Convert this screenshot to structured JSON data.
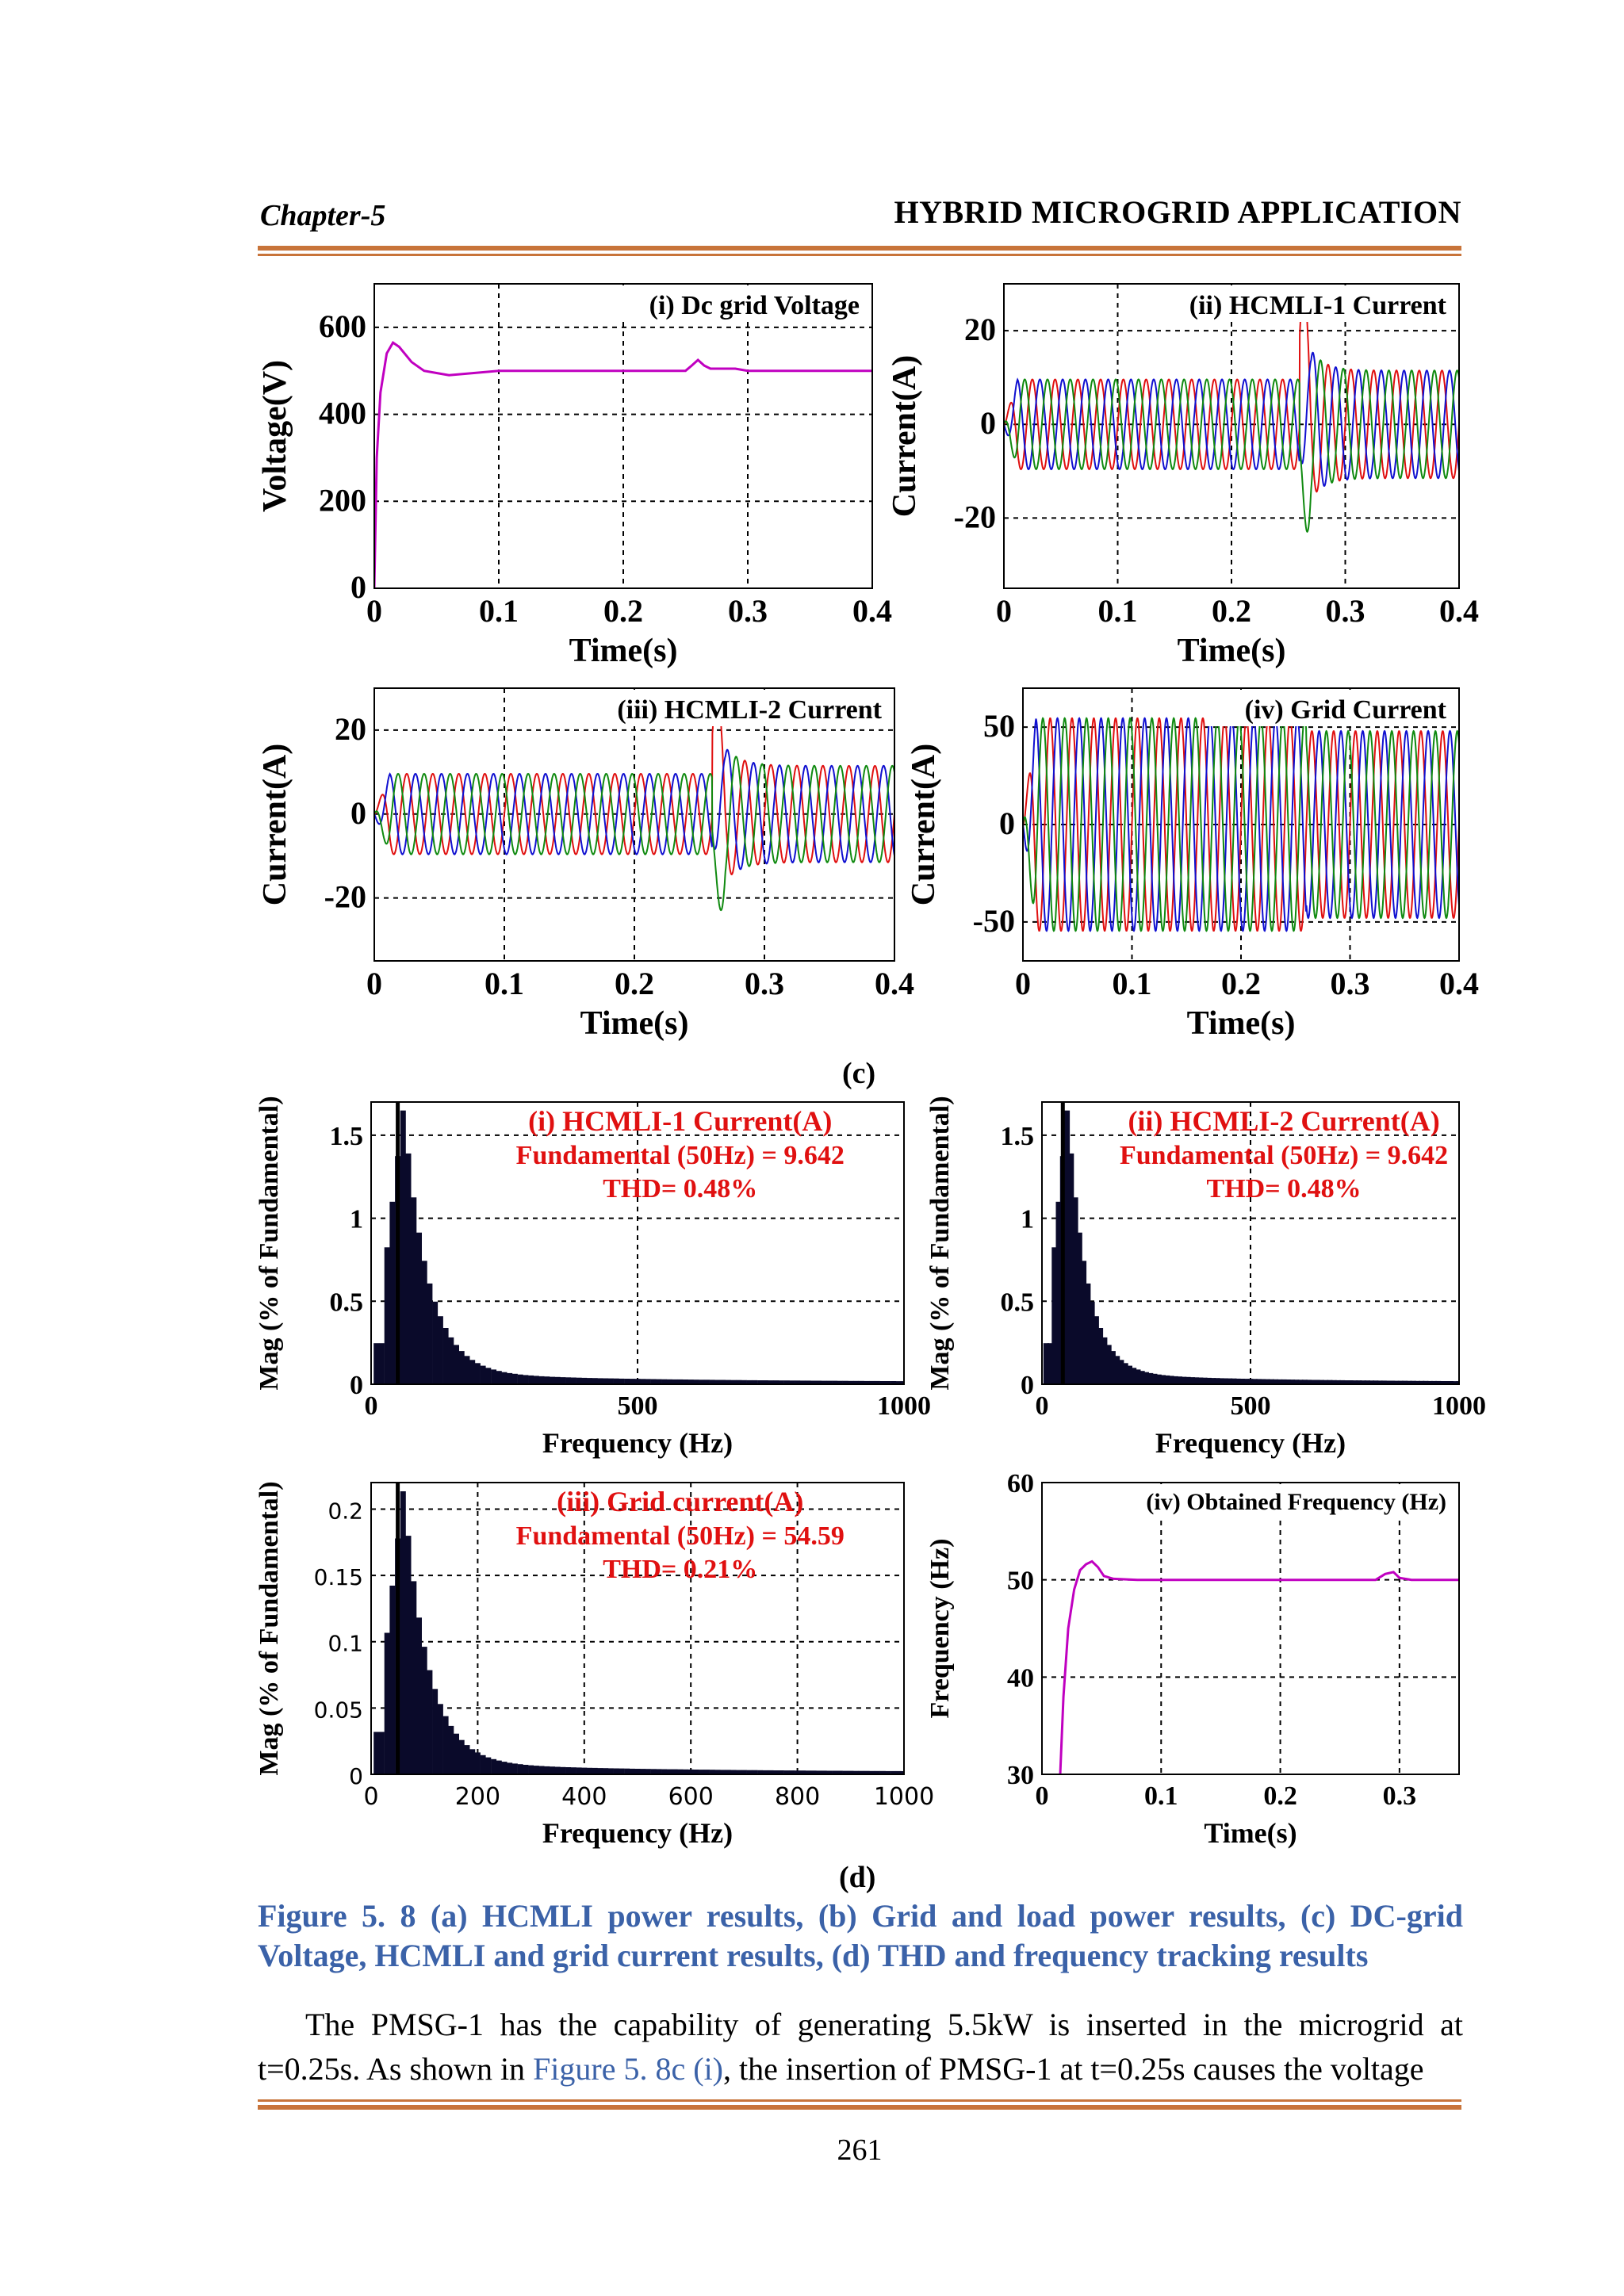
{
  "header": {
    "chapter": "Chapter-5",
    "title": "HYBRID MICROGRID APPLICATION"
  },
  "colors": {
    "rule": "#c8743a",
    "caption": "#3b62a8",
    "phase_a": "#e01010",
    "phase_b": "#1010d0",
    "phase_c": "#108a10",
    "trace": "#c000c0",
    "fft_text": "#e01010"
  },
  "figure_c": {
    "label": "(c)",
    "panels": [
      {
        "type": "line",
        "title": "(i) Dc grid Voltage",
        "ylabel": "Voltage(V)",
        "xlabel": "Time(s)",
        "xlim": [
          0,
          0.4
        ],
        "ylim": [
          0,
          700
        ],
        "yticks": [
          0,
          200,
          400,
          600
        ],
        "xticks": [
          0,
          0.1,
          0.2,
          0.3,
          0.4
        ],
        "series": [
          {
            "color": "#c000c0",
            "x": [
              0,
              0.002,
              0.005,
              0.01,
              0.015,
              0.02,
              0.03,
              0.04,
              0.05,
              0.06,
              0.08,
              0.1,
              0.15,
              0.2,
              0.25,
              0.255,
              0.26,
              0.265,
              0.27,
              0.28,
              0.29,
              0.3,
              0.35,
              0.4
            ],
            "y": [
              0,
              300,
              450,
              540,
              565,
              555,
              520,
              500,
              495,
              490,
              495,
              500,
              500,
              500,
              500,
              512,
              525,
              512,
              505,
              505,
              505,
              500,
              500,
              500
            ]
          }
        ]
      },
      {
        "type": "3phase",
        "title": "(ii) HCMLI-1 Current",
        "ylabel": "Current(A)",
        "xlabel": "Time(s)",
        "xlim": [
          0,
          0.4
        ],
        "ylim": [
          -35,
          30
        ],
        "yticks": [
          -20,
          0,
          20
        ],
        "xticks": [
          0,
          0.1,
          0.2,
          0.3,
          0.4
        ],
        "event_time": 0.26,
        "amp_before": 9.6,
        "amp_after": 11.5,
        "spike": 24,
        "freq_hz": 50
      },
      {
        "type": "3phase",
        "title": "(iii) HCMLI-2 Current",
        "ylabel": "Current(A)",
        "xlabel": "Time(s)",
        "xlim": [
          0,
          0.4
        ],
        "ylim": [
          -35,
          30
        ],
        "yticks": [
          -20,
          0,
          20
        ],
        "xticks": [
          0,
          0.1,
          0.2,
          0.3,
          0.4
        ],
        "event_time": 0.26,
        "amp_before": 9.6,
        "amp_after": 11.5,
        "spike": 24,
        "freq_hz": 50
      },
      {
        "type": "3phase",
        "title": "(iv) Grid Current",
        "ylabel": "Current(A)",
        "xlabel": "Time(s)",
        "xlim": [
          0,
          0.4
        ],
        "ylim": [
          -70,
          70
        ],
        "yticks": [
          -50,
          0,
          50
        ],
        "xticks": [
          0,
          0.1,
          0.2,
          0.3,
          0.4
        ],
        "event_time": 0.26,
        "amp_before": 54.6,
        "amp_after": 48,
        "spike": 0,
        "freq_hz": 50
      }
    ]
  },
  "figure_d": {
    "label": "(d)",
    "panels": [
      {
        "type": "bar",
        "text_lines": [
          "(i) HCMLI-1 Current(A)",
          "Fundamental (50Hz) = 9.642",
          "THD= 0.48%"
        ],
        "ylabel": "Mag (% of Fundamental)",
        "xlabel": "Frequency (Hz)",
        "xlim": [
          0,
          1000
        ],
        "ylim": [
          0,
          1.7
        ],
        "yticks": [
          0,
          0.5,
          1,
          1.5
        ],
        "ytick_labels": [
          "0",
          "0.5",
          "1",
          "1.5"
        ],
        "xticks": [
          0,
          500,
          1000
        ],
        "xtick_labels": [
          "0",
          "500",
          "1000"
        ]
      },
      {
        "type": "bar",
        "text_lines": [
          "(ii) HCMLI-2 Current(A)",
          "Fundamental (50Hz) = 9.642",
          "THD= 0.48%"
        ],
        "ylabel": "Mag (% of Fundamental)",
        "xlabel": "Frequency (Hz)",
        "xlim": [
          0,
          1000
        ],
        "ylim": [
          0,
          1.7
        ],
        "yticks": [
          0,
          0.5,
          1,
          1.5
        ],
        "ytick_labels": [
          "0",
          "0.5",
          "1",
          "1.5"
        ],
        "xticks": [
          0,
          500,
          1000
        ],
        "xtick_labels": [
          "0",
          "500",
          "1000"
        ]
      },
      {
        "type": "bar",
        "text_lines": [
          "(iii) Grid current(A)",
          "Fundamental (50Hz) = 54.59",
          "THD= 0.21%"
        ],
        "ylabel": "Mag (% of Fundamental)",
        "xlabel": "Frequency (Hz)",
        "xlim": [
          0,
          1000
        ],
        "ylim": [
          0,
          0.22
        ],
        "yticks": [
          0,
          0.05,
          0.1,
          0.15,
          0.2
        ],
        "ytick_labels": [
          "0",
          "0.05",
          "0.1",
          "0.15",
          "0.2"
        ],
        "xticks": [
          0,
          200,
          400,
          600,
          800,
          1000
        ],
        "xtick_labels": [
          "0",
          "200",
          "400",
          "600",
          "800",
          "1000"
        ]
      },
      {
        "type": "line",
        "title": "(iv) Obtained Frequency (Hz)",
        "ylabel": "Frequency (Hz)",
        "xlabel": "Time(s)",
        "xlim": [
          0,
          0.35
        ],
        "ylim": [
          30,
          60
        ],
        "yticks": [
          30,
          40,
          50,
          60
        ],
        "xticks": [
          0,
          0.1,
          0.2,
          0.3
        ],
        "series": [
          {
            "color": "#c000c0",
            "x": [
              0.015,
              0.018,
              0.022,
              0.027,
              0.032,
              0.037,
              0.042,
              0.047,
              0.052,
              0.06,
              0.08,
              0.1,
              0.2,
              0.28,
              0.288,
              0.295,
              0.3,
              0.31,
              0.35
            ],
            "y": [
              29,
              38,
              45,
              49,
              51,
              51.6,
              51.9,
              51.3,
              50.4,
              50.1,
              50,
              50,
              50,
              50,
              50.6,
              50.8,
              50.2,
              50,
              50
            ]
          }
        ]
      }
    ]
  },
  "caption": "Figure 5. 8 (a) HCMLI power results, (b) Grid and load power results, (c) DC-grid Voltage, HCMLI and grid current results, (d) THD and frequency tracking results",
  "body": {
    "part1": "The PMSG-1 has the capability of generating 5.5kW is inserted in the microgrid at t=0.25s. As shown in ",
    "ref": "Figure 5. 8c (i)",
    "part2": ", the insertion of PMSG-1 at t=0.25s causes the voltage"
  },
  "page_number": "261"
}
